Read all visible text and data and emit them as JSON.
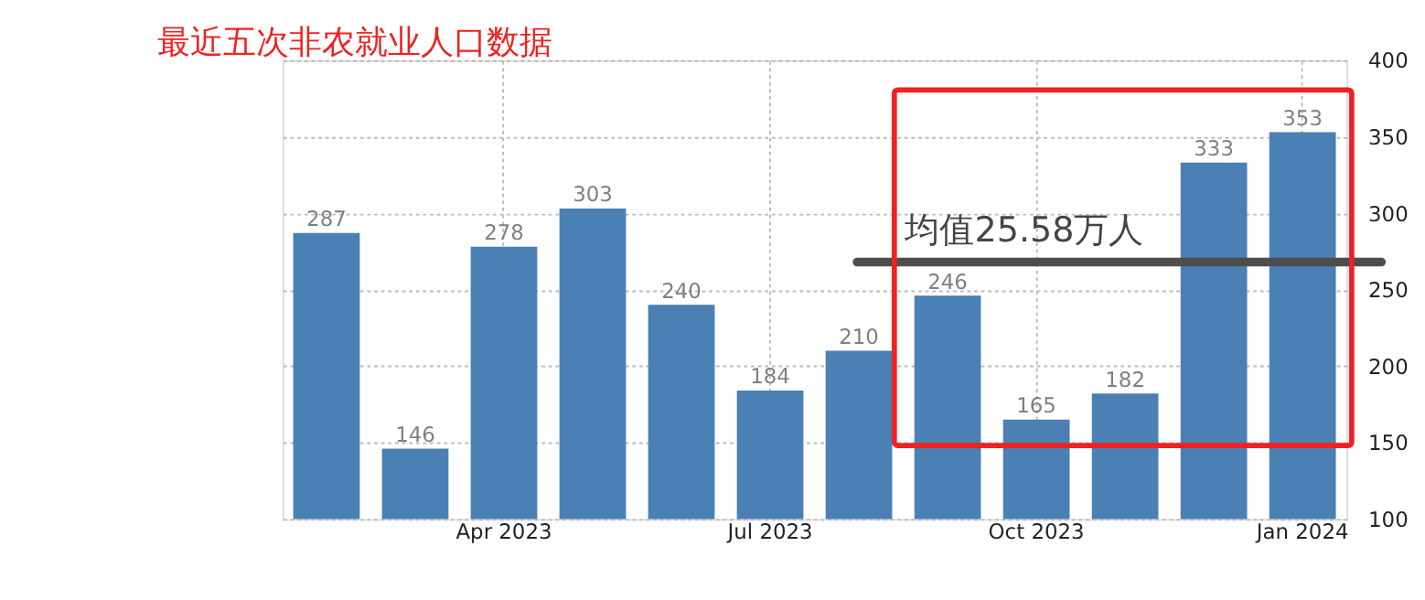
{
  "chart_data": {
    "type": "bar",
    "title": "最近五次非农就业人口数据",
    "categories": [
      null,
      null,
      "Apr 2023",
      null,
      null,
      "Jul 2023",
      null,
      null,
      "Oct 2023",
      null,
      null,
      "Jan 2024"
    ],
    "values": [
      287,
      146,
      278,
      303,
      240,
      184,
      210,
      246,
      165,
      182,
      333,
      353
    ],
    "color": "#4a80b4",
    "data_labels": true,
    "ylim": [
      100,
      400
    ],
    "yticks": [
      100,
      150,
      200,
      250,
      300,
      350,
      400
    ],
    "grid": true,
    "ref_lines": [
      {
        "axis": "y",
        "value": 268,
        "label": "均值25.58万人",
        "color": "#4d4d4d"
      }
    ]
  }
}
